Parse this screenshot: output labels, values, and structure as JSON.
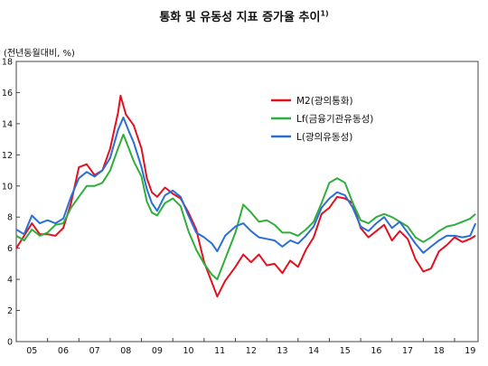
{
  "chart_data": {
    "type": "line",
    "title": "통화 및 유동성 지표 증가율 추이",
    "title_footnote": "1)",
    "ylabel": "(전년동월대비, %)",
    "ylim": [
      0,
      18
    ],
    "yticks": [
      0,
      2,
      4,
      6,
      8,
      10,
      12,
      14,
      16,
      18
    ],
    "x_tick_labels": [
      "05",
      "06",
      "07",
      "08",
      "09",
      "10",
      "11",
      "12",
      "13",
      "14",
      "15",
      "16",
      "17",
      "18",
      "19"
    ],
    "xlim": [
      2005.0,
      2019.75
    ],
    "grid": false,
    "legend_position": "top-right",
    "series": [
      {
        "name": "M2(광의통화)",
        "color": "#e2111f",
        "points": [
          [
            2005.0,
            6.0
          ],
          [
            2005.25,
            6.8
          ],
          [
            2005.5,
            7.6
          ],
          [
            2005.75,
            6.9
          ],
          [
            2006.0,
            6.9
          ],
          [
            2006.25,
            6.8
          ],
          [
            2006.5,
            7.3
          ],
          [
            2006.75,
            8.9
          ],
          [
            2007.0,
            11.2
          ],
          [
            2007.25,
            11.4
          ],
          [
            2007.5,
            10.7
          ],
          [
            2007.75,
            11.0
          ],
          [
            2008.0,
            12.4
          ],
          [
            2008.25,
            14.7
          ],
          [
            2008.33,
            15.8
          ],
          [
            2008.5,
            14.6
          ],
          [
            2008.75,
            13.9
          ],
          [
            2009.0,
            12.4
          ],
          [
            2009.17,
            10.5
          ],
          [
            2009.33,
            9.6
          ],
          [
            2009.5,
            9.3
          ],
          [
            2009.75,
            9.9
          ],
          [
            2010.0,
            9.5
          ],
          [
            2010.25,
            9.2
          ],
          [
            2010.5,
            8.3
          ],
          [
            2010.75,
            7.2
          ],
          [
            2011.0,
            5.1
          ],
          [
            2011.25,
            3.8
          ],
          [
            2011.42,
            2.9
          ],
          [
            2011.67,
            3.9
          ],
          [
            2012.0,
            4.8
          ],
          [
            2012.25,
            5.6
          ],
          [
            2012.5,
            5.1
          ],
          [
            2012.75,
            5.6
          ],
          [
            2013.0,
            4.9
          ],
          [
            2013.25,
            5.0
          ],
          [
            2013.5,
            4.4
          ],
          [
            2013.75,
            5.2
          ],
          [
            2014.0,
            4.8
          ],
          [
            2014.25,
            5.9
          ],
          [
            2014.5,
            6.7
          ],
          [
            2014.75,
            8.2
          ],
          [
            2015.0,
            8.6
          ],
          [
            2015.25,
            9.3
          ],
          [
            2015.5,
            9.2
          ],
          [
            2015.75,
            8.9
          ],
          [
            2016.0,
            7.3
          ],
          [
            2016.25,
            6.7
          ],
          [
            2016.5,
            7.1
          ],
          [
            2016.75,
            7.5
          ],
          [
            2017.0,
            6.5
          ],
          [
            2017.25,
            7.1
          ],
          [
            2017.5,
            6.6
          ],
          [
            2017.75,
            5.3
          ],
          [
            2018.0,
            4.5
          ],
          [
            2018.25,
            4.7
          ],
          [
            2018.5,
            5.8
          ],
          [
            2018.75,
            6.2
          ],
          [
            2019.0,
            6.7
          ],
          [
            2019.25,
            6.4
          ],
          [
            2019.5,
            6.6
          ],
          [
            2019.67,
            6.8
          ]
        ]
      },
      {
        "name": "Lf(금융기관유동성)",
        "color": "#2fae3c",
        "points": [
          [
            2005.0,
            6.8
          ],
          [
            2005.25,
            6.5
          ],
          [
            2005.5,
            7.2
          ],
          [
            2005.75,
            6.8
          ],
          [
            2006.0,
            7.0
          ],
          [
            2006.25,
            7.5
          ],
          [
            2006.5,
            7.6
          ],
          [
            2006.75,
            8.6
          ],
          [
            2007.0,
            9.3
          ],
          [
            2007.25,
            10.0
          ],
          [
            2007.5,
            10.0
          ],
          [
            2007.75,
            10.2
          ],
          [
            2008.0,
            11.0
          ],
          [
            2008.25,
            12.4
          ],
          [
            2008.42,
            13.3
          ],
          [
            2008.58,
            12.5
          ],
          [
            2008.75,
            11.6
          ],
          [
            2009.0,
            10.6
          ],
          [
            2009.17,
            9.0
          ],
          [
            2009.33,
            8.3
          ],
          [
            2009.5,
            8.1
          ],
          [
            2009.75,
            8.9
          ],
          [
            2010.0,
            9.2
          ],
          [
            2010.25,
            8.7
          ],
          [
            2010.5,
            7.1
          ],
          [
            2010.75,
            5.9
          ],
          [
            2011.0,
            5.0
          ],
          [
            2011.25,
            4.3
          ],
          [
            2011.42,
            4.0
          ],
          [
            2011.67,
            5.3
          ],
          [
            2012.0,
            7.0
          ],
          [
            2012.25,
            8.8
          ],
          [
            2012.5,
            8.3
          ],
          [
            2012.75,
            7.7
          ],
          [
            2013.0,
            7.8
          ],
          [
            2013.25,
            7.5
          ],
          [
            2013.5,
            7.0
          ],
          [
            2013.75,
            7.0
          ],
          [
            2014.0,
            6.8
          ],
          [
            2014.25,
            7.2
          ],
          [
            2014.5,
            7.7
          ],
          [
            2014.75,
            8.9
          ],
          [
            2015.0,
            10.2
          ],
          [
            2015.25,
            10.5
          ],
          [
            2015.5,
            10.2
          ],
          [
            2015.75,
            8.9
          ],
          [
            2016.0,
            7.8
          ],
          [
            2016.25,
            7.6
          ],
          [
            2016.5,
            8.0
          ],
          [
            2016.75,
            8.2
          ],
          [
            2017.0,
            8.0
          ],
          [
            2017.25,
            7.7
          ],
          [
            2017.5,
            7.4
          ],
          [
            2017.75,
            6.7
          ],
          [
            2018.0,
            6.4
          ],
          [
            2018.25,
            6.7
          ],
          [
            2018.5,
            7.1
          ],
          [
            2018.75,
            7.4
          ],
          [
            2019.0,
            7.5
          ],
          [
            2019.25,
            7.7
          ],
          [
            2019.5,
            7.9
          ],
          [
            2019.67,
            8.2
          ]
        ]
      },
      {
        "name": "L(광의유동성)",
        "color": "#2a6fd6",
        "points": [
          [
            2005.0,
            7.2
          ],
          [
            2005.25,
            6.9
          ],
          [
            2005.5,
            8.1
          ],
          [
            2005.75,
            7.6
          ],
          [
            2006.0,
            7.8
          ],
          [
            2006.25,
            7.6
          ],
          [
            2006.5,
            7.9
          ],
          [
            2006.75,
            9.3
          ],
          [
            2007.0,
            10.5
          ],
          [
            2007.25,
            10.9
          ],
          [
            2007.5,
            10.6
          ],
          [
            2007.75,
            11.0
          ],
          [
            2008.0,
            11.8
          ],
          [
            2008.25,
            13.6
          ],
          [
            2008.42,
            14.4
          ],
          [
            2008.58,
            13.6
          ],
          [
            2008.75,
            12.8
          ],
          [
            2009.0,
            11.2
          ],
          [
            2009.17,
            9.8
          ],
          [
            2009.33,
            8.9
          ],
          [
            2009.5,
            8.4
          ],
          [
            2009.75,
            9.4
          ],
          [
            2010.0,
            9.7
          ],
          [
            2010.25,
            9.3
          ],
          [
            2010.5,
            8.1
          ],
          [
            2010.75,
            7.0
          ],
          [
            2011.0,
            6.7
          ],
          [
            2011.25,
            6.3
          ],
          [
            2011.42,
            5.8
          ],
          [
            2011.67,
            6.8
          ],
          [
            2012.0,
            7.4
          ],
          [
            2012.25,
            7.6
          ],
          [
            2012.5,
            7.1
          ],
          [
            2012.75,
            6.7
          ],
          [
            2013.0,
            6.6
          ],
          [
            2013.25,
            6.5
          ],
          [
            2013.5,
            6.1
          ],
          [
            2013.75,
            6.5
          ],
          [
            2014.0,
            6.3
          ],
          [
            2014.25,
            6.8
          ],
          [
            2014.5,
            7.4
          ],
          [
            2014.75,
            8.6
          ],
          [
            2015.0,
            9.2
          ],
          [
            2015.25,
            9.6
          ],
          [
            2015.5,
            9.4
          ],
          [
            2015.75,
            8.6
          ],
          [
            2016.0,
            7.4
          ],
          [
            2016.25,
            7.1
          ],
          [
            2016.5,
            7.6
          ],
          [
            2016.75,
            8.0
          ],
          [
            2017.0,
            7.3
          ],
          [
            2017.25,
            7.7
          ],
          [
            2017.5,
            7.0
          ],
          [
            2017.75,
            6.3
          ],
          [
            2018.0,
            5.7
          ],
          [
            2018.25,
            6.1
          ],
          [
            2018.5,
            6.5
          ],
          [
            2018.75,
            6.8
          ],
          [
            2019.0,
            6.8
          ],
          [
            2019.25,
            6.7
          ],
          [
            2019.5,
            6.8
          ],
          [
            2019.67,
            7.6
          ]
        ]
      }
    ]
  }
}
